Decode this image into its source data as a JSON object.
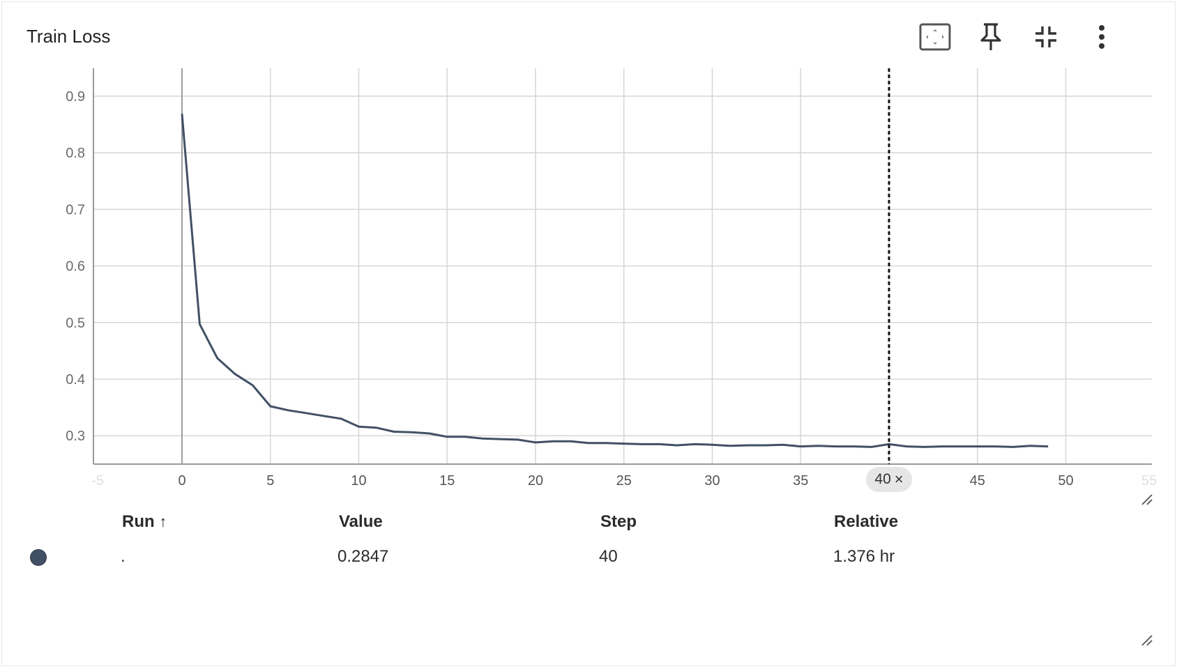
{
  "card": {
    "title": "Train Loss",
    "toolbar": {
      "fit_icon": "fit-to-domain-icon",
      "pin_icon": "pin-icon",
      "collapse_icon": "collapse-icon",
      "more_icon": "more-vert-icon"
    }
  },
  "chart_data": {
    "type": "line",
    "title": "Train Loss",
    "xlabel": "",
    "ylabel": "",
    "xlim": [
      -5,
      50
    ],
    "ylim": [
      0.25,
      0.95
    ],
    "x_ticks": [
      "-5",
      "0",
      "5",
      "10",
      "15",
      "20",
      "25",
      "30",
      "35",
      "40",
      "45",
      "50",
      "55"
    ],
    "y_ticks": [
      "0.3",
      "0.4",
      "0.5",
      "0.6",
      "0.7",
      "0.8",
      "0.9"
    ],
    "grid": true,
    "series": [
      {
        "color": "#425066",
        "x": [
          0,
          1,
          2,
          3,
          4,
          5,
          6,
          7,
          8,
          9,
          10,
          11,
          12,
          13,
          14,
          15,
          16,
          17,
          18,
          19,
          20,
          21,
          22,
          23,
          24,
          25,
          26,
          27,
          28,
          29,
          30,
          31,
          32,
          33,
          34,
          35,
          36,
          37,
          38,
          39,
          40,
          41,
          42,
          43,
          44,
          45,
          46,
          47,
          48,
          49
        ],
        "y": [
          0.869,
          0.497,
          0.437,
          0.409,
          0.389,
          0.352,
          0.345,
          0.34,
          0.335,
          0.33,
          0.316,
          0.314,
          0.307,
          0.306,
          0.304,
          0.298,
          0.298,
          0.295,
          0.294,
          0.293,
          0.288,
          0.29,
          0.29,
          0.287,
          0.287,
          0.286,
          0.285,
          0.285,
          0.283,
          0.285,
          0.284,
          0.282,
          0.283,
          0.283,
          0.284,
          0.281,
          0.282,
          0.281,
          0.281,
          0.28,
          0.285,
          0.281,
          0.28,
          0.281,
          0.281,
          0.281,
          0.281,
          0.28,
          0.282,
          0.281
        ]
      }
    ],
    "cursor_step": 40
  },
  "step_chip": {
    "label": "40",
    "close": "×"
  },
  "table": {
    "headers": {
      "run": "Run",
      "sort_arrow": "↑",
      "value": "Value",
      "step": "Step",
      "relative": "Relative"
    },
    "rows": [
      {
        "run": ".",
        "value": "0.2847",
        "step": "40",
        "relative": "1.376 hr",
        "color": "#425066"
      }
    ]
  }
}
